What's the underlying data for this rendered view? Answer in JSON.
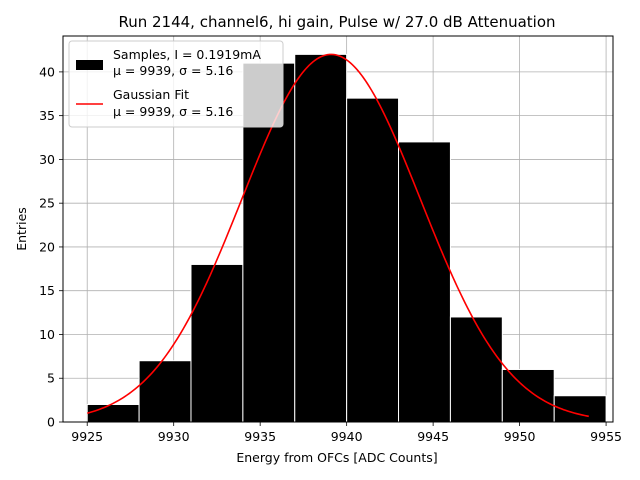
{
  "chart_data": {
    "type": "bar",
    "title": "Run 2144, channel6, hi gain, Pulse w/ 27.0 dB Attenuation",
    "xlabel": "Energy from OFCs [ADC Counts]",
    "ylabel": "Entries",
    "xlim": [
      9923.6,
      9955.4
    ],
    "ylim": [
      0,
      44.1
    ],
    "xticks": [
      9925,
      9930,
      9935,
      9940,
      9945,
      9950,
      9955
    ],
    "yticks": [
      0,
      5,
      10,
      15,
      20,
      25,
      30,
      35,
      40
    ],
    "grid": true,
    "legend_position": "top-left",
    "histogram": {
      "name": "Samples, I = 0.1919mA",
      "name_line2": "μ = 9939, σ = 5.16",
      "color": "#000000",
      "edge_color": "#ffffff",
      "bin_edges": [
        9925,
        9928,
        9931,
        9934,
        9937,
        9940,
        9943,
        9946,
        9949,
        9952,
        9955
      ],
      "values": [
        2,
        7,
        18,
        41,
        42,
        37,
        32,
        12,
        6,
        3
      ]
    },
    "fit": {
      "name": "Gaussian Fit",
      "name_line2": "μ = 9939, σ = 5.16",
      "color": "#ff0000",
      "mu": 9939.1,
      "sigma": 5.16,
      "amplitude": 42,
      "x_range": [
        9925,
        9954
      ]
    }
  }
}
